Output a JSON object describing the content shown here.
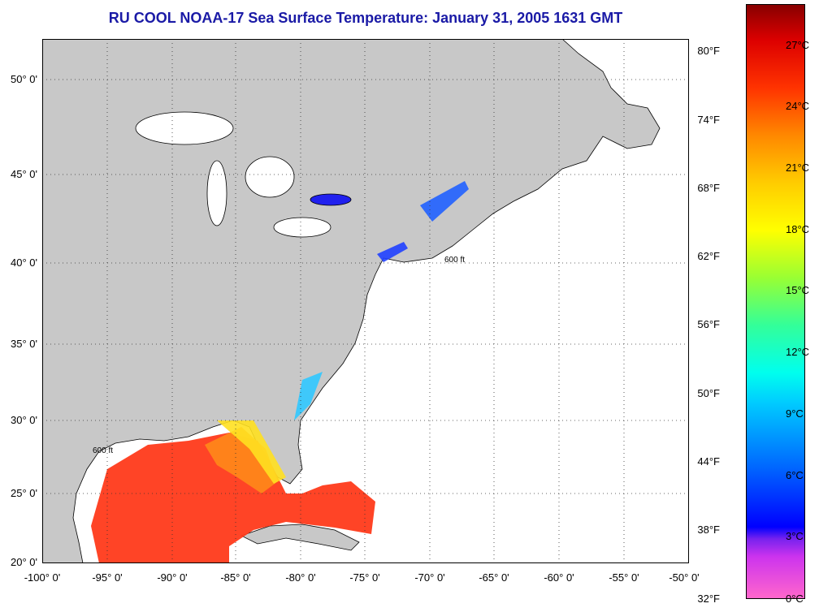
{
  "title": "RU COOL  NOAA-17  Sea Surface Temperature:  January 31, 2005 1631 GMT",
  "map": {
    "lat_labels": [
      "50° 0'",
      "45° 0'",
      "40° 0'",
      "35° 0'",
      "30° 0'",
      "25° 0'",
      "20° 0'"
    ],
    "lon_labels": [
      "-100° 0'",
      "-95° 0'",
      "-90° 0'",
      "-85° 0'",
      "-80° 0'",
      "-75° 0'",
      "-70° 0'",
      "-65° 0'",
      "-60° 0'",
      "-55° 0'",
      "-50° 0'"
    ],
    "contour_label": "600 ft",
    "colors": {
      "land": "#c8c8c8",
      "ocean": "#ffffff",
      "grid": "#333333"
    }
  },
  "colorbar": {
    "f_labels": [
      "80°F",
      "74°F",
      "68°F",
      "62°F",
      "56°F",
      "50°F",
      "44°F",
      "38°F",
      "32°F"
    ],
    "c_labels": [
      "27°C",
      "24°C",
      "21°C",
      "18°C",
      "15°C",
      "12°C",
      "9°C",
      "6°C",
      "3°C",
      "0°C"
    ]
  }
}
